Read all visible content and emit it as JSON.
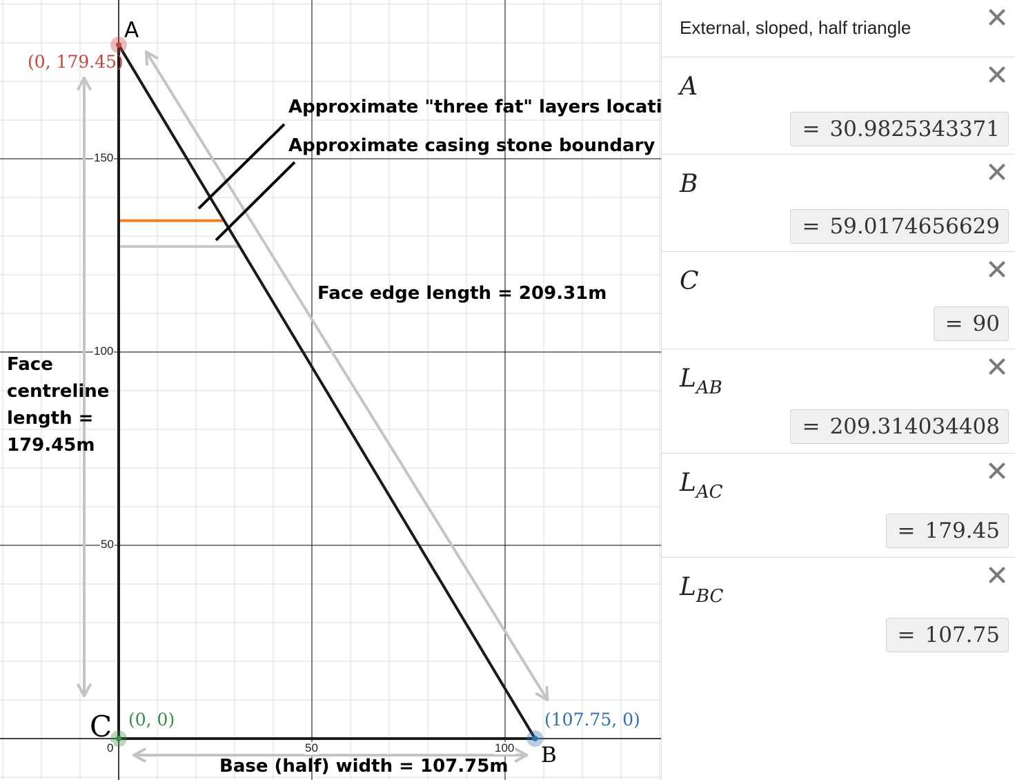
{
  "graph": {
    "vertex_a": {
      "name": "A",
      "x": 0,
      "y": 179.45,
      "coord_label": "(0, 179.45)",
      "color": "#c74440"
    },
    "vertex_b": {
      "name": "B",
      "x": 107.75,
      "y": 0,
      "coord_label": "(107.75, 0)",
      "color": "#2d70b3"
    },
    "vertex_c": {
      "name": "C",
      "x": 0,
      "y": 0,
      "coord_label": "(0, 0)",
      "color": "#388c46"
    },
    "x_ticks": [
      "0",
      "50",
      "100"
    ],
    "y_ticks": [
      "50",
      "100",
      "150"
    ],
    "x_tick_values": [
      0,
      50,
      100
    ],
    "y_tick_values": [
      50,
      100,
      150
    ],
    "annotations": {
      "three_fat": "Approximate \"three fat\" layers location",
      "casing": "Approximate casing stone boundary",
      "face_edge": "Face edge length = 209.31m",
      "centreline_lines": [
        "Face",
        "centreline",
        "length =",
        "179.45m"
      ],
      "base_width": "Base (half) width = 107.75m"
    },
    "three_fat_level": 134,
    "casing_level": 127.3,
    "colors": {
      "triangle": "#1a1a1a",
      "three_fat_line": "#f07d2a",
      "casing_line": "#c8c8c8",
      "arrow": "#c4c4c4",
      "grid_minor": "#dcdcdc",
      "grid_major": "#000000"
    }
  },
  "panel": {
    "title": "External, sloped, half triangle",
    "expressions": [
      {
        "name": "A",
        "sub": "",
        "value": "30.9825343371"
      },
      {
        "name": "B",
        "sub": "",
        "value": "59.0174656629"
      },
      {
        "name": "C",
        "sub": "",
        "value": "90"
      },
      {
        "name": "L",
        "sub": "AB",
        "value": "209.314034408"
      },
      {
        "name": "L",
        "sub": "AC",
        "value": "179.45"
      },
      {
        "name": "L",
        "sub": "BC",
        "value": "107.75"
      }
    ]
  }
}
